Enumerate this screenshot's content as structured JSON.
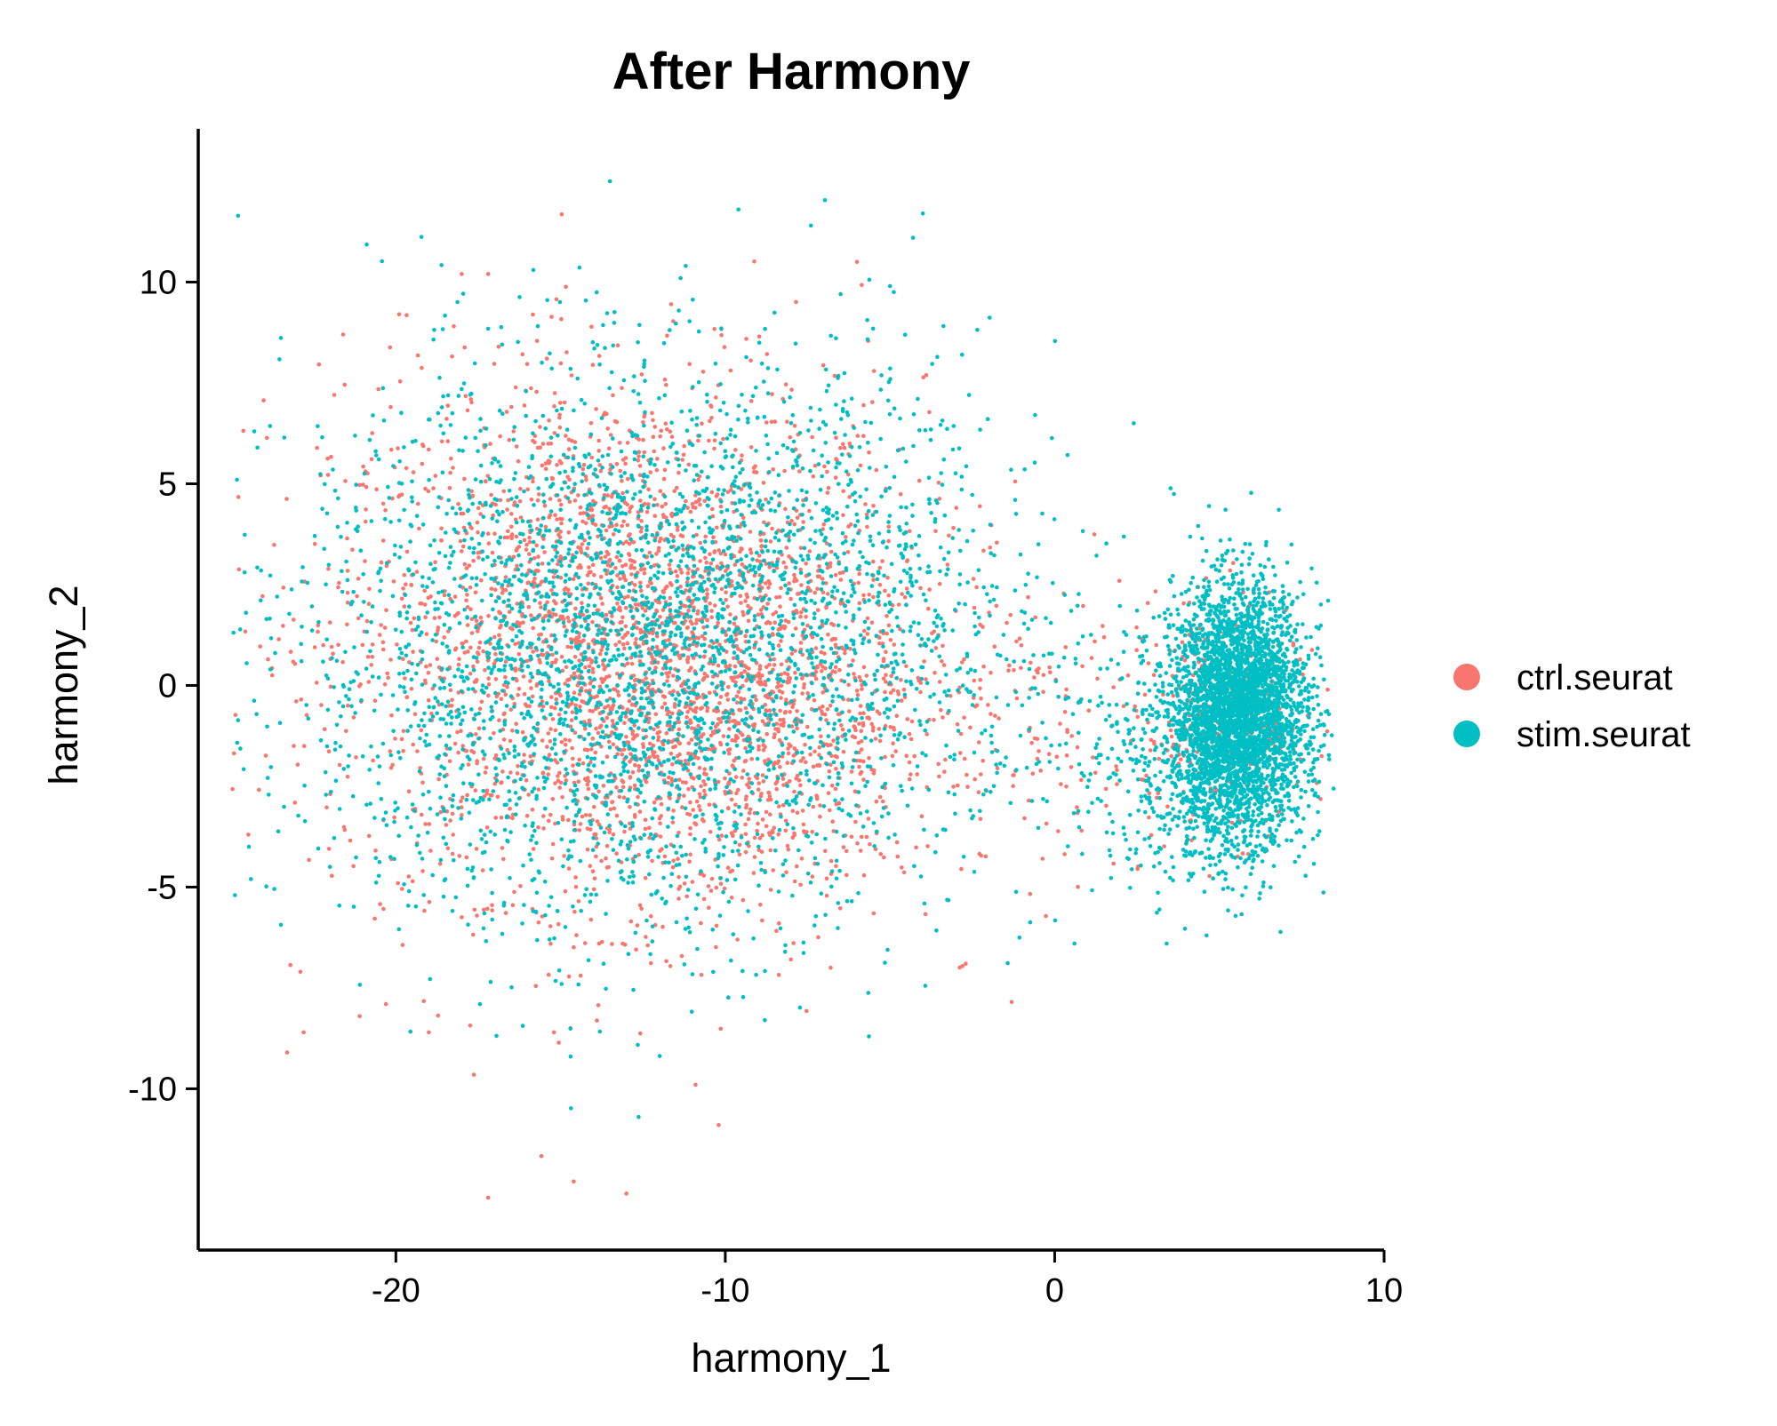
{
  "chart_data": {
    "type": "scatter",
    "title": "After Harmony",
    "xlabel": "harmony_1",
    "ylabel": "harmony_2",
    "xlim": [
      -26,
      10
    ],
    "ylim": [
      -14,
      13.8
    ],
    "xticks": [
      -20,
      -10,
      0,
      10
    ],
    "yticks": [
      -10,
      -5,
      0,
      5,
      10
    ],
    "xtick_labels": [
      "-20",
      "-10",
      "0",
      "10"
    ],
    "ytick_labels": [
      "-10",
      "-5",
      "0",
      "5",
      "10"
    ],
    "grid": false,
    "legend_position": "right",
    "legend": [
      {
        "label": "ctrl.seurat",
        "color": "#F8766D"
      },
      {
        "label": "stim.seurat",
        "color": "#00BFC4"
      }
    ],
    "series": [
      {
        "name": "ctrl.seurat",
        "color": "#F8766D",
        "clusters": [
          {
            "cx": -13.0,
            "cy": 1.2,
            "sx": 4.5,
            "sy": 3.2,
            "n": 2600
          },
          {
            "cx": -9.5,
            "cy": -1.2,
            "sx": 3.2,
            "sy": 2.2,
            "n": 700
          },
          {
            "cx": 5.2,
            "cy": -0.8,
            "sx": 1.2,
            "sy": 1.4,
            "n": 300
          },
          {
            "cx": 0.5,
            "cy": -0.8,
            "sx": 2.5,
            "sy": 1.6,
            "n": 120
          }
        ],
        "points": [
          {
            "x": -23.3,
            "y": -9.1
          },
          {
            "x": -22.8,
            "y": -8.6
          },
          {
            "x": -22.9,
            "y": -7.1
          },
          {
            "x": -21.1,
            "y": -8.2
          },
          {
            "x": -20.3,
            "y": -7.9
          },
          {
            "x": -19.0,
            "y": -8.6
          },
          {
            "x": -10.9,
            "y": -9.9
          },
          {
            "x": -10.2,
            "y": -10.9
          },
          {
            "x": -17.2,
            "y": -12.7
          },
          {
            "x": -14.6,
            "y": -12.3
          },
          {
            "x": -13.0,
            "y": -12.6
          },
          {
            "x": -15.2,
            "y": -8.6
          },
          {
            "x": -14.7,
            "y": -8.5
          },
          {
            "x": -6.0,
            "y": 10.5
          },
          {
            "x": -18.0,
            "y": 10.2
          },
          {
            "x": -17.2,
            "y": 10.2
          },
          {
            "x": -19.9,
            "y": 9.2
          },
          {
            "x": -21.6,
            "y": 8.7
          },
          {
            "x": -2.7,
            "y": -6.9
          },
          {
            "x": -6.8,
            "y": -7.0
          },
          {
            "x": -23.1,
            "y": -1.5
          }
        ]
      },
      {
        "name": "stim.seurat",
        "color": "#00BFC4",
        "clusters": [
          {
            "cx": -13.0,
            "cy": 0.8,
            "sx": 5.0,
            "sy": 3.4,
            "n": 2900
          },
          {
            "cx": -7.0,
            "cy": 2.5,
            "sx": 3.5,
            "sy": 3.0,
            "n": 450
          },
          {
            "cx": 5.6,
            "cy": -0.6,
            "sx": 1.0,
            "sy": 1.5,
            "n": 3400
          },
          {
            "cx": 4.5,
            "cy": -2.2,
            "sx": 1.6,
            "sy": 1.4,
            "n": 500
          },
          {
            "cx": 1.0,
            "cy": -1.0,
            "sx": 2.5,
            "sy": 2.0,
            "n": 150
          }
        ],
        "points": [
          {
            "x": -13.5,
            "y": 12.5
          },
          {
            "x": -9.6,
            "y": 11.8
          },
          {
            "x": -4.0,
            "y": 11.7
          },
          {
            "x": -7.4,
            "y": 11.4
          },
          {
            "x": -4.3,
            "y": 11.1
          },
          {
            "x": -11.2,
            "y": 10.4
          },
          {
            "x": -24.3,
            "y": 6.3
          },
          {
            "x": -24.4,
            "y": -4.8
          },
          {
            "x": -8.8,
            "y": -8.3
          },
          {
            "x": 0.6,
            "y": -6.4
          },
          {
            "x": 3.4,
            "y": -6.4
          },
          {
            "x": -6.5,
            "y": 9.7
          },
          {
            "x": -5.0,
            "y": 9.9
          },
          {
            "x": -2.6,
            "y": 7.2
          },
          {
            "x": 2.4,
            "y": 6.5
          },
          {
            "x": 8.3,
            "y": 2.1
          },
          {
            "x": 7.8,
            "y": 2.9
          },
          {
            "x": -22.0,
            "y": -4.5
          }
        ]
      }
    ]
  }
}
